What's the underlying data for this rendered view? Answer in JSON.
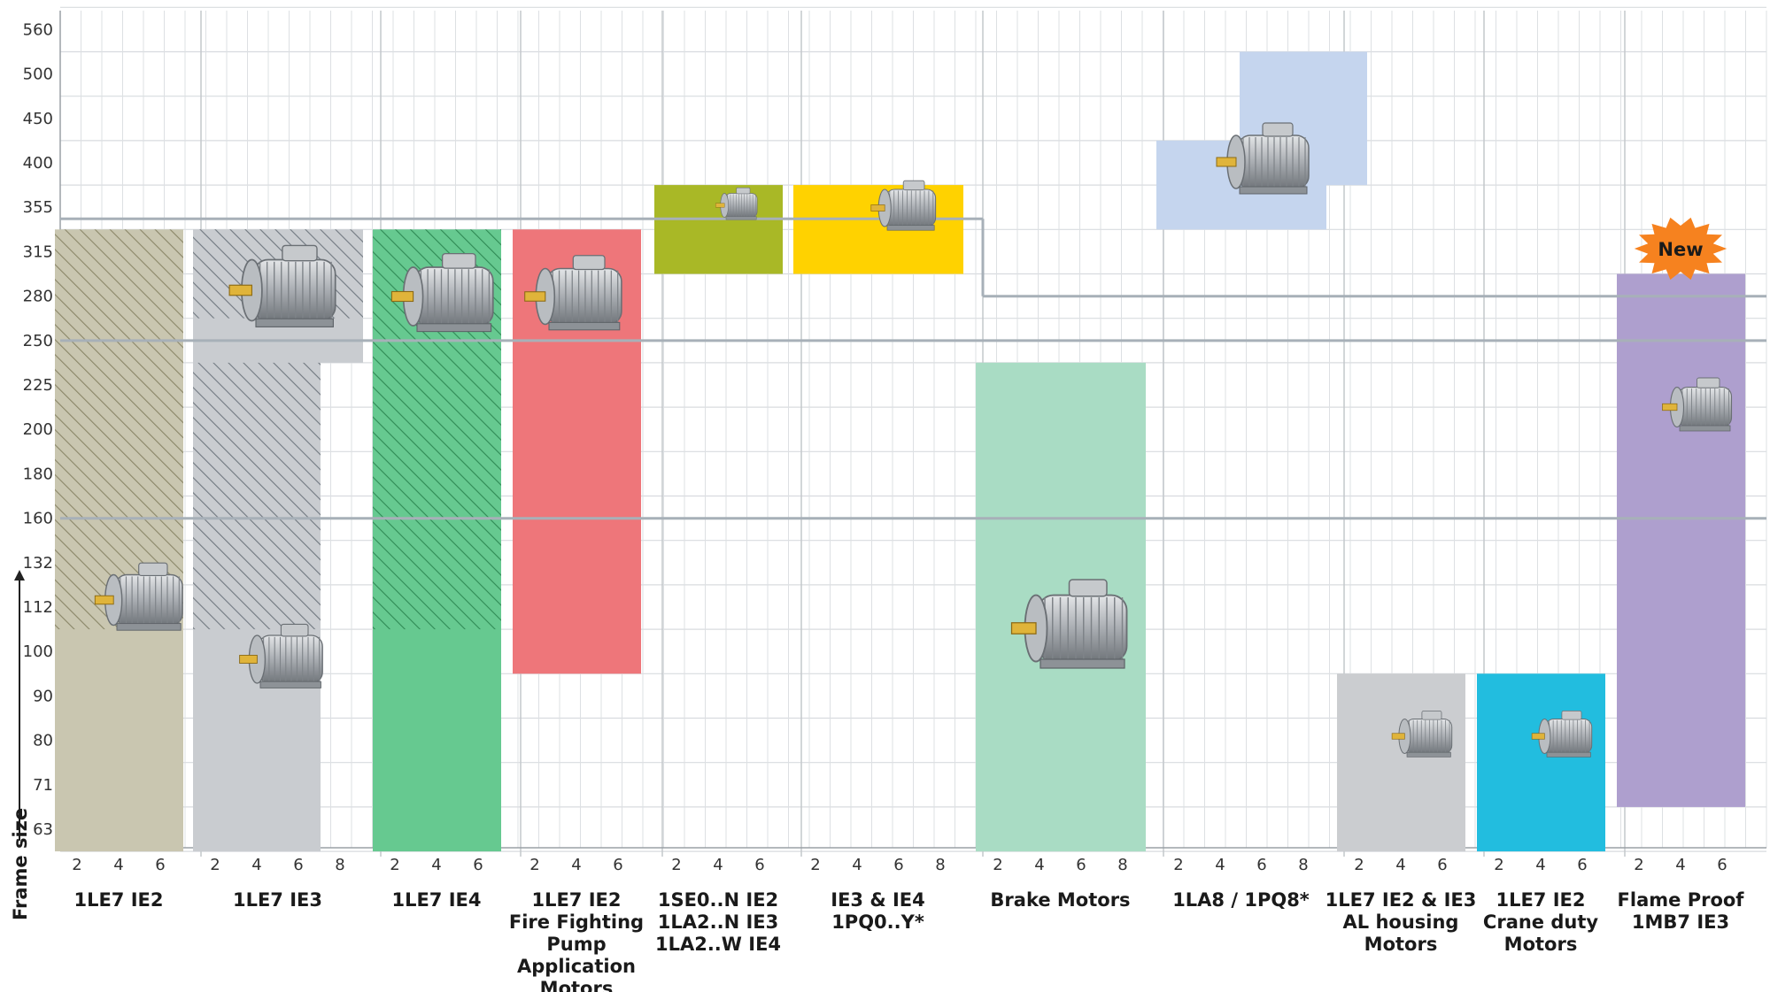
{
  "chart_data": {
    "type": "bar",
    "title": "",
    "ylabel": "Frame size",
    "y_categories": [
      "63",
      "71",
      "80",
      "90",
      "100",
      "112",
      "132",
      "160",
      "180",
      "200",
      "225",
      "250",
      "280",
      "315",
      "355",
      "400",
      "450",
      "500",
      "560"
    ],
    "groups": [
      {
        "id": "1le7-ie2",
        "label": [
          "1LE7 IE2"
        ],
        "poles": [
          "2",
          "4",
          "6"
        ],
        "bars": [
          {
            "range": [
              "63",
              "315"
            ],
            "color": "#c9c6b0",
            "hatch_from": "100",
            "hatch_color": "#8a8668"
          }
        ]
      },
      {
        "id": "1le7-ie3",
        "label": [
          "1LE7 IE3"
        ],
        "poles": [
          "2",
          "4",
          "6",
          "8"
        ],
        "bars": [
          {
            "range": [
              "63",
              "315"
            ],
            "color": "#c9ccd0",
            "hatch_from": "100",
            "hatch_color": "#707880",
            "pole_span": 3
          },
          {
            "range": [
              "250",
              "315"
            ],
            "color": "#c9ccd0",
            "hatch_from": "250",
            "hatch_color": "#707880",
            "pole_span": 4
          }
        ]
      },
      {
        "id": "1le7-ie4",
        "label": [
          "1LE7 IE4"
        ],
        "poles": [
          "2",
          "4",
          "6"
        ],
        "bars": [
          {
            "range": [
              "63",
              "315"
            ],
            "color": "#66c990",
            "hatch_from": "100",
            "hatch_color": "#2f8a55"
          }
        ]
      },
      {
        "id": "1le7-ie2-fire",
        "label": [
          "1LE7 IE2",
          "Fire Fighting",
          "Pump",
          "Application",
          "Motors"
        ],
        "poles": [
          "2",
          "4",
          "6"
        ],
        "bars": [
          {
            "range": [
              "100",
              "315"
            ],
            "color": "#ee767a"
          }
        ]
      },
      {
        "id": "1se0",
        "label": [
          "1SE0..N IE2",
          "1LA2..N IE3",
          "1LA2..W IE4"
        ],
        "poles": [
          "2",
          "4",
          "6"
        ],
        "bars": [
          {
            "range": [
              "315",
              "355"
            ],
            "color": "#a9b826"
          }
        ]
      },
      {
        "id": "ie3-ie4-1pq0",
        "label": [
          "IE3 & IE4",
          "1PQ0..Y*"
        ],
        "poles": [
          "2",
          "4",
          "6",
          "8"
        ],
        "bars": [
          {
            "range": [
              "315",
              "355"
            ],
            "color": "#ffd200"
          }
        ]
      },
      {
        "id": "brake",
        "label": [
          "Brake Motors"
        ],
        "poles": [
          "2",
          "4",
          "6",
          "8"
        ],
        "bars": [
          {
            "range": [
              "63",
              "225"
            ],
            "color": "#a9dcc4"
          }
        ]
      },
      {
        "id": "1la8",
        "label": [
          "1LA8 / 1PQ8*"
        ],
        "poles": [
          "2",
          "4",
          "6",
          "8"
        ],
        "bars": [
          {
            "range": [
              "355",
              "400"
            ],
            "color": "#c5d5ee",
            "pole_span": 4
          },
          {
            "range": [
              "400",
              "500"
            ],
            "color": "#c5d5ee",
            "pole_from": 2,
            "pole_span": 3
          }
        ]
      },
      {
        "id": "al-housing",
        "label": [
          "1LE7 IE2 & IE3",
          "AL housing",
          "Motors"
        ],
        "poles": [
          "2",
          "4",
          "6"
        ],
        "bars": [
          {
            "range": [
              "63",
              "90"
            ],
            "color": "#cbcdd0"
          }
        ]
      },
      {
        "id": "crane",
        "label": [
          "1LE7 IE2",
          "Crane duty",
          "Motors"
        ],
        "poles": [
          "2",
          "4",
          "6"
        ],
        "bars": [
          {
            "range": [
              "63",
              "90"
            ],
            "color": "#22bddf"
          }
        ]
      },
      {
        "id": "flameproof",
        "label": [
          "Flame Proof",
          "1MB7 IE3"
        ],
        "poles": [
          "2",
          "4",
          "6"
        ],
        "bars": [
          {
            "range": [
              "71",
              "280"
            ],
            "color": "#ae9fce"
          }
        ],
        "badge": "New"
      }
    ],
    "grid": true
  }
}
